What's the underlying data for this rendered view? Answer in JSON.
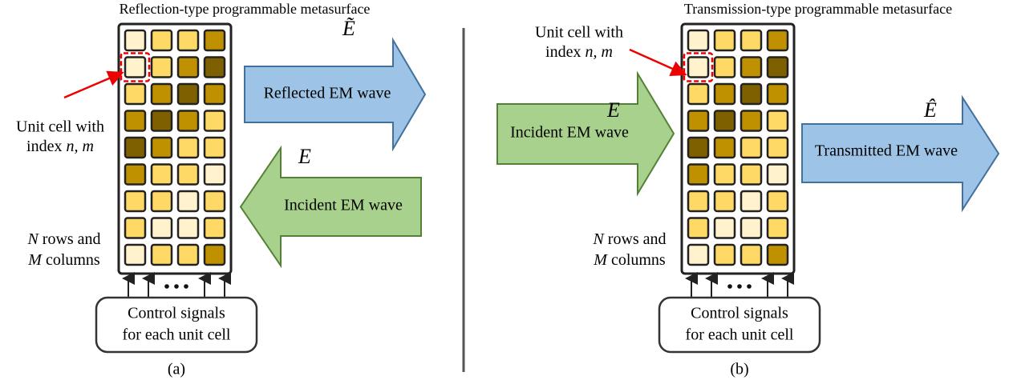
{
  "panels": [
    {
      "title": "Reflection-type programmable metasurface",
      "unit_cell_label": {
        "line1": "Unit cell with",
        "line2_prefix": "index",
        "line2_var": "n, m"
      },
      "outgoing_wave": {
        "label": "Reflected EM wave",
        "symbol": "Ẽ"
      },
      "incident_wave": {
        "label": "Incident EM wave",
        "symbol": "E"
      },
      "grid_label": {
        "var1": "N",
        "text1": "rows and",
        "var2": "M",
        "text2": "columns"
      },
      "control_label": {
        "line1": "Control signals",
        "line2": "for each unit cell"
      },
      "caption": "(a)"
    },
    {
      "title": "Transmission-type programmable metasurface",
      "unit_cell_label": {
        "line1": "Unit cell with",
        "line2_prefix": "index",
        "line2_var": "n, m"
      },
      "outgoing_wave": {
        "label": "Transmitted EM wave",
        "symbol": "Ê"
      },
      "incident_wave": {
        "label": "Incident EM wave",
        "symbol": "E"
      },
      "grid_label": {
        "var1": "N",
        "text1": "rows and",
        "var2": "M",
        "text2": "columns"
      },
      "control_label": {
        "line1": "Control signals",
        "line2": "for each unit cell"
      },
      "caption": "(b)"
    }
  ]
}
